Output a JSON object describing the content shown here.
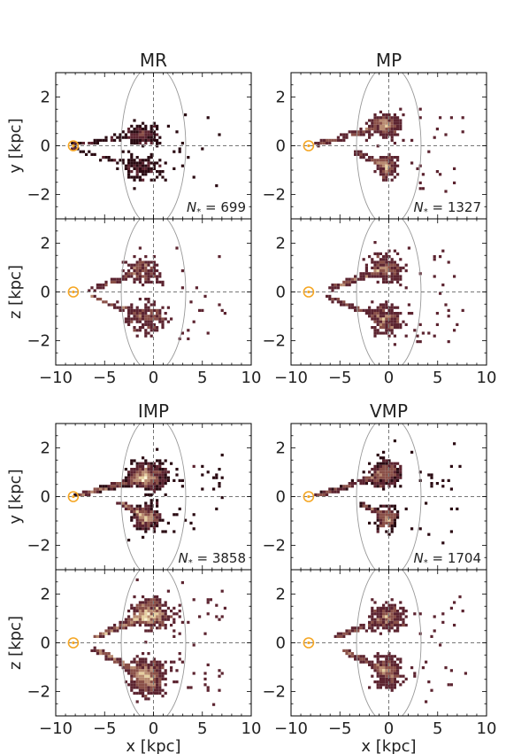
{
  "chart_data": {
    "type": "heatmap",
    "x_range": [
      -10,
      10
    ],
    "y_range": [
      -3,
      3
    ],
    "x_ticks": [
      -10,
      -5,
      0,
      5,
      10
    ],
    "y_ticks": [
      -2,
      0,
      2
    ],
    "xlabel": "x [kpc]",
    "ylabels": {
      "xy": "y [kpc]",
      "xz": "z [kpc]"
    },
    "sun_position": {
      "x": -8.2,
      "y": 0
    },
    "ellipse": {
      "center_x": 0,
      "semi_x": 3.3,
      "semi_y": 3.3
    },
    "groups": [
      {
        "name": "MR",
        "n_stars": "699",
        "xy": [
          {
            "x": [
              -3.5,
              1
            ],
            "y": [
              -0.05,
              1.05
            ],
            "tip_x": -8.6,
            "tip_y": 0.1,
            "peak": 0.55,
            "n": 260
          },
          {
            "x": [
              -4,
              1.8
            ],
            "y": [
              -1.7,
              -0.1
            ],
            "tip_x": -8.6,
            "tip_y": -0.05,
            "peak": 0.45,
            "n": 170
          }
        ],
        "xz": [
          {
            "x": [
              -3.5,
              1
            ],
            "y": [
              0.3,
              1.6
            ],
            "tip_x": -6.8,
            "tip_y": 0.1,
            "peak": 0.6,
            "n": 220
          },
          {
            "x": [
              -3.5,
              2
            ],
            "y": [
              -1.8,
              -0.2
            ],
            "tip_x": -6.5,
            "tip_y": -0.1,
            "peak": 0.55,
            "n": 250
          }
        ]
      },
      {
        "name": "MP",
        "n_stars": "1327",
        "xy": [
          {
            "x": [
              -2.5,
              1.5
            ],
            "y": [
              0.3,
              1.5
            ],
            "tip_x": -7.5,
            "tip_y": 0.1,
            "peak": 0.85,
            "n": 420
          },
          {
            "x": [
              -1.5,
              0.8
            ],
            "y": [
              -1.4,
              -0.2
            ],
            "tip_x": -3.5,
            "tip_y": -0.2,
            "peak": 0.7,
            "n": 260
          }
        ],
        "xz": [
          {
            "x": [
              -3,
              2
            ],
            "y": [
              0.3,
              1.7
            ],
            "tip_x": -6.2,
            "tip_y": 0.2,
            "peak": 0.85,
            "n": 400
          },
          {
            "x": [
              -2.5,
              1.5
            ],
            "y": [
              -1.9,
              -0.3
            ],
            "tip_x": -6.5,
            "tip_y": -0.1,
            "peak": 0.75,
            "n": 380
          }
        ]
      },
      {
        "name": "IMP",
        "n_stars": "3858",
        "xy": [
          {
            "x": [
              -3,
              1.5
            ],
            "y": [
              0.2,
              1.6
            ],
            "tip_x": -7.8,
            "tip_y": 0.1,
            "peak": 1.0,
            "n": 800
          },
          {
            "x": [
              -2.5,
              0.8
            ],
            "y": [
              -1.4,
              -0.2
            ],
            "tip_x": -3.5,
            "tip_y": -0.2,
            "peak": 0.8,
            "n": 450
          }
        ],
        "xz": [
          {
            "x": [
              -3,
              2
            ],
            "y": [
              0.5,
              2
            ],
            "tip_x": -6,
            "tip_y": 0.3,
            "peak": 1.0,
            "n": 700
          },
          {
            "x": [
              -3,
              1.5
            ],
            "y": [
              -2.3,
              -0.4
            ],
            "tip_x": -6,
            "tip_y": -0.2,
            "peak": 0.85,
            "n": 650
          }
        ]
      },
      {
        "name": "VMP",
        "n_stars": "1704",
        "xy": [
          {
            "x": [
              -2.5,
              1.5
            ],
            "y": [
              0.3,
              1.7
            ],
            "tip_x": -7.5,
            "tip_y": 0.1,
            "peak": 0.9,
            "n": 460
          },
          {
            "x": [
              -1.5,
              1
            ],
            "y": [
              -1.5,
              -0.2
            ],
            "tip_x": -3,
            "tip_y": -0.2,
            "peak": 0.75,
            "n": 260
          }
        ],
        "xz": [
          {
            "x": [
              -2.5,
              2
            ],
            "y": [
              0.4,
              1.8
            ],
            "tip_x": -5.5,
            "tip_y": 0.3,
            "peak": 0.9,
            "n": 380
          },
          {
            "x": [
              -2,
              1.5
            ],
            "y": [
              -2,
              -0.3
            ],
            "tip_x": -5,
            "tip_y": -0.2,
            "peak": 0.85,
            "n": 420
          }
        ]
      }
    ],
    "colormap": [
      "#2a0a12",
      "#5c2430",
      "#8a5048",
      "#b88a70",
      "#e6cfa0",
      "#fbf3d2"
    ],
    "sun_color": "#f5a623"
  }
}
